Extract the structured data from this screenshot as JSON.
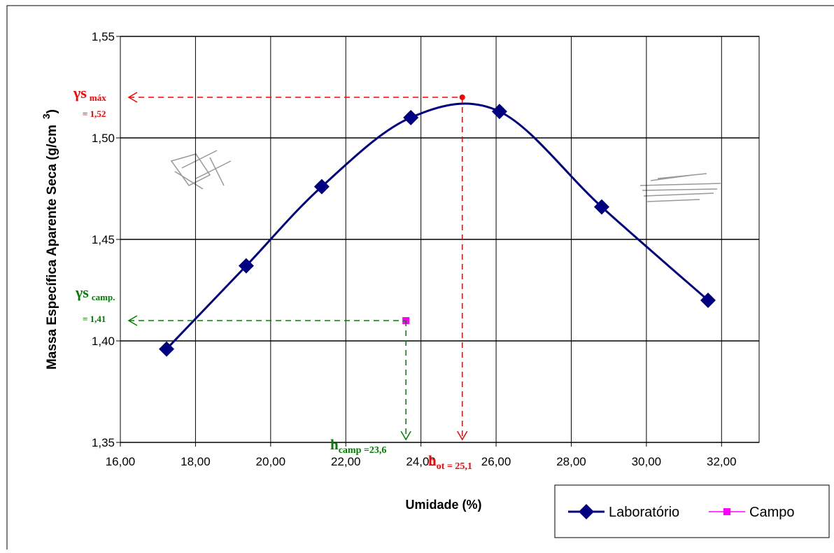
{
  "chart_data": {
    "type": "line",
    "x_label": "Umidade (%)",
    "y_label": "Massa Específica Aparente Seca (g/cm",
    "y_label_sup": "3",
    "y_label_end": ")",
    "xlim": [
      16,
      33
    ],
    "xticks": [
      {
        "value": 16,
        "label": "16,00"
      },
      {
        "value": 18,
        "label": "18,00"
      },
      {
        "value": 20,
        "label": "20,00"
      },
      {
        "value": 22,
        "label": "22,00"
      },
      {
        "value": 24,
        "label": "24,00"
      },
      {
        "value": 26,
        "label": "26,00"
      },
      {
        "value": 28,
        "label": "28,00"
      },
      {
        "value": 30,
        "label": "30,00"
      },
      {
        "value": 32,
        "label": "32,00"
      }
    ],
    "ylim": [
      1.35,
      1.55
    ],
    "yticks": [
      {
        "value": 1.35,
        "label": "1,35"
      },
      {
        "value": 1.4,
        "label": "1,40"
      },
      {
        "value": 1.45,
        "label": "1,45"
      },
      {
        "value": 1.5,
        "label": "1,50"
      },
      {
        "value": 1.55,
        "label": "1,55"
      }
    ],
    "grid": true,
    "legend": "bottom-right",
    "series": [
      {
        "name": "Laboratório",
        "color": "#000080",
        "marker": "diamond",
        "x": [
          17.23,
          19.35,
          21.36,
          23.73,
          26.09,
          28.81,
          31.64
        ],
        "values": [
          1.396,
          1.437,
          1.476,
          1.51,
          1.513,
          1.466,
          1.42
        ]
      },
      {
        "name": "Campo",
        "color": "#ff00ff",
        "marker": "square",
        "x": [
          23.6
        ],
        "values": [
          1.41
        ]
      }
    ],
    "annotations": [
      {
        "color": "#ff0000",
        "x": 25.1,
        "y": 1.52,
        "y_symbol": "γs",
        "y_sub": "máx",
        "y_text": "= 1,52",
        "x_symbol": "h",
        "x_sub": "ot = 25,1"
      },
      {
        "color": "#008000",
        "x": 23.6,
        "y": 1.41,
        "y_symbol": "γs",
        "y_sub": "camp.",
        "y_text": "= 1,41",
        "x_symbol": "h",
        "x_sub": "camp =23,6"
      }
    ]
  }
}
